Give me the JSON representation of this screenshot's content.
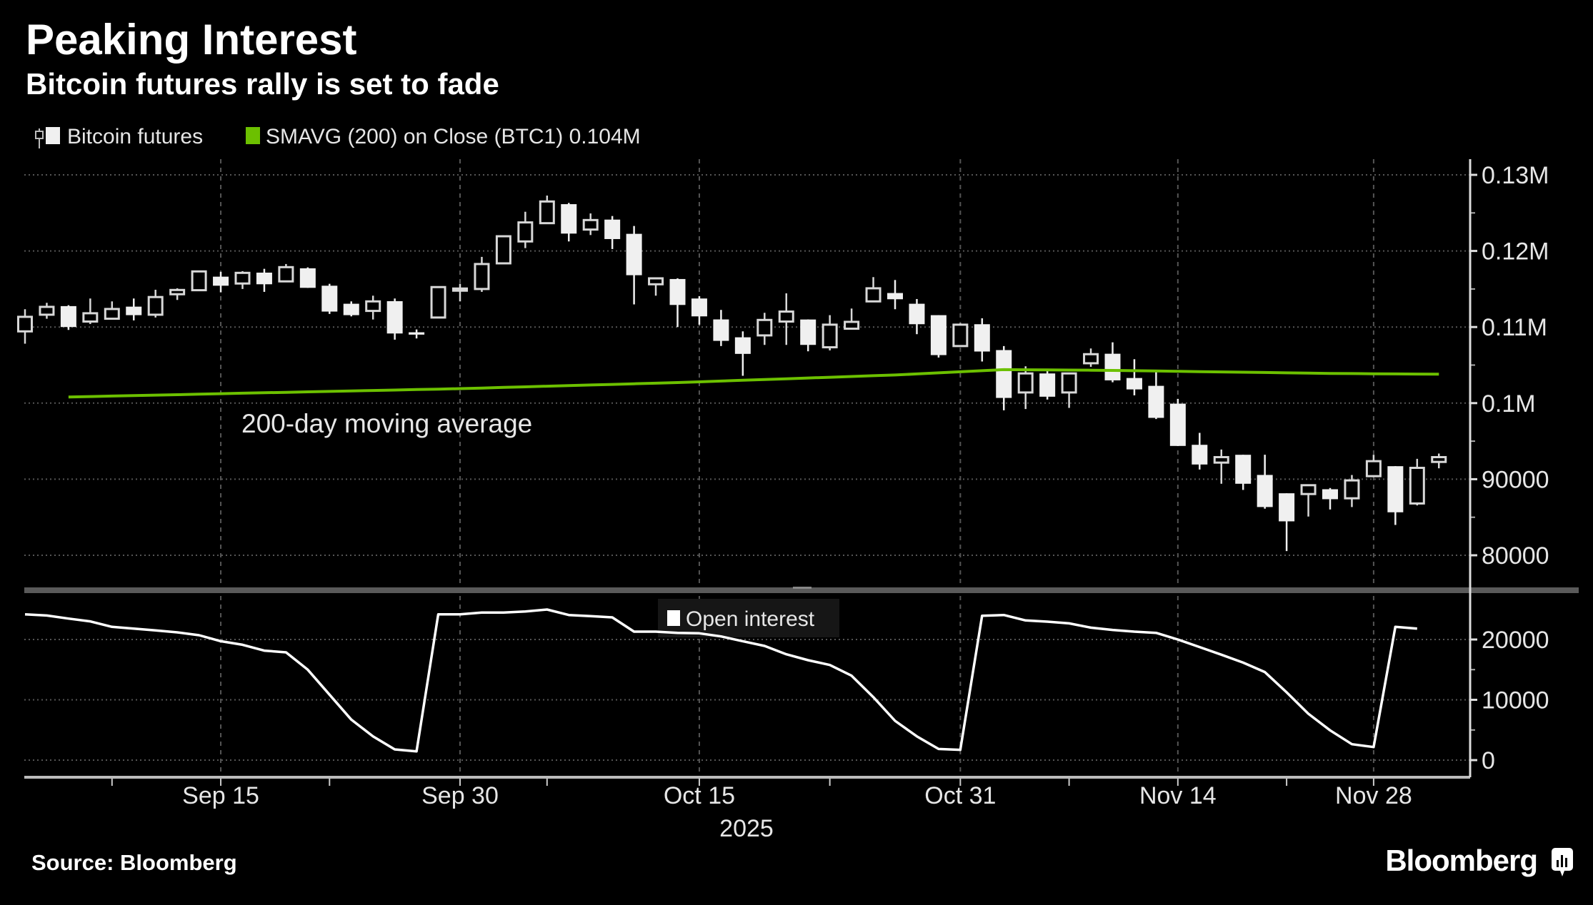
{
  "header": {
    "title": "Peaking Interest",
    "subtitle": "Bitcoin futures rally is set to fade"
  },
  "legend": {
    "candles_label": "Bitcoin futures",
    "sma_label": "SMAVG (200)  on Close (BTC1) 0.104M",
    "open_interest_label": "Open interest"
  },
  "annotation": "200-day moving average",
  "footer": {
    "source": "Source: Bloomberg",
    "brand": "Bloomberg"
  },
  "colors": {
    "background": "#000000",
    "candle": "#f0f0f0",
    "sma": "#6cc000",
    "open_interest": "#ffffff",
    "grid": "#4a4a4a"
  },
  "chart_data": [
    {
      "type": "candlestick",
      "series_name": "Bitcoin futures",
      "y_ticks": [
        {
          "value": 130000,
          "label": "0.13M"
        },
        {
          "value": 120000,
          "label": "0.12M"
        },
        {
          "value": 110000,
          "label": "0.11M"
        },
        {
          "value": 100000,
          "label": "0.1M"
        },
        {
          "value": 90000,
          "label": "90000"
        },
        {
          "value": 80000,
          "label": "80000"
        }
      ],
      "ylim": [
        77000,
        132000
      ],
      "grid": true,
      "legend_position": "top-left",
      "candles": {
        "columns": [
          "date",
          "open",
          "high",
          "low",
          "close"
        ],
        "rows": [
          [
            "2025-09-02",
            109430,
            112340,
            107810,
            111340
          ],
          [
            "2025-09-03",
            111620,
            113180,
            111090,
            112650
          ],
          [
            "2025-09-04",
            112750,
            112870,
            109620,
            110000
          ],
          [
            "2025-09-05",
            110720,
            113750,
            110400,
            111810
          ],
          [
            "2025-09-08",
            111090,
            113370,
            111090,
            112370
          ],
          [
            "2025-09-09",
            112680,
            113750,
            110870,
            111560
          ],
          [
            "2025-09-10",
            111620,
            114900,
            111250,
            113940
          ],
          [
            "2025-09-11",
            114310,
            115090,
            113560,
            114870
          ],
          [
            "2025-09-12",
            114840,
            117400,
            114800,
            117310
          ],
          [
            "2025-09-15",
            116620,
            117250,
            114560,
            115430
          ],
          [
            "2025-09-16",
            115720,
            117340,
            115000,
            117120
          ],
          [
            "2025-09-17",
            117150,
            117650,
            114620,
            115620
          ],
          [
            "2025-09-18",
            116000,
            118280,
            116000,
            117870
          ],
          [
            "2025-09-19",
            117720,
            117840,
            115150,
            115150
          ],
          [
            "2025-09-22",
            115430,
            115680,
            111720,
            112030
          ],
          [
            "2025-09-23",
            113060,
            113370,
            111400,
            111560
          ],
          [
            "2025-09-24",
            112120,
            114120,
            110990,
            113370
          ],
          [
            "2025-09-25",
            113400,
            113750,
            108340,
            109150
          ],
          [
            "2025-09-26",
            109310,
            109680,
            108500,
            109000
          ],
          [
            "2025-09-29",
            111250,
            115250,
            111250,
            115250
          ],
          [
            "2025-09-30",
            114950,
            115680,
            113370,
            115060
          ],
          [
            "2025-10-01",
            115000,
            119220,
            114620,
            118280
          ],
          [
            "2025-10-02",
            118370,
            122000,
            118370,
            121930
          ],
          [
            "2025-10-03",
            121250,
            125150,
            120370,
            123750
          ],
          [
            "2025-10-06",
            123650,
            127280,
            123650,
            126500
          ],
          [
            "2025-10-07",
            126150,
            126310,
            121250,
            122280
          ],
          [
            "2025-10-08",
            122810,
            124930,
            122090,
            124060
          ],
          [
            "2025-10-09",
            124120,
            124590,
            120250,
            121560
          ],
          [
            "2025-10-10",
            122250,
            123280,
            112970,
            116810
          ],
          [
            "2025-10-13",
            115620,
            116400,
            114120,
            116400
          ],
          [
            "2025-10-14",
            116310,
            116400,
            110000,
            112900
          ],
          [
            "2025-10-15",
            113750,
            114060,
            110310,
            111400
          ],
          [
            "2025-10-16",
            111000,
            112250,
            107500,
            108180
          ],
          [
            "2025-10-17",
            108650,
            109430,
            103590,
            106470
          ],
          [
            "2025-10-20",
            108900,
            111870,
            107650,
            110930
          ],
          [
            "2025-10-21",
            110720,
            114430,
            107650,
            112030
          ],
          [
            "2025-10-22",
            110990,
            111000,
            106810,
            107650
          ],
          [
            "2025-10-23",
            107340,
            111560,
            106930,
            110310
          ],
          [
            "2025-10-24",
            109780,
            112430,
            109780,
            110680
          ],
          [
            "2025-10-27",
            113370,
            116560,
            113370,
            115090
          ],
          [
            "2025-10-28",
            114470,
            116180,
            112340,
            113650
          ],
          [
            "2025-10-29",
            113060,
            113680,
            109060,
            110370
          ],
          [
            "2025-10-30",
            111560,
            111560,
            105990,
            106310
          ],
          [
            "2025-10-31",
            107500,
            110500,
            107500,
            110310
          ],
          [
            "2025-11-03",
            110370,
            111150,
            105470,
            106780
          ],
          [
            "2025-11-04",
            106970,
            107500,
            99060,
            100680
          ],
          [
            "2025-11-05",
            101400,
            104840,
            99220,
            103900
          ],
          [
            "2025-11-06",
            103900,
            104530,
            100470,
            100840
          ],
          [
            "2025-11-07",
            101400,
            104000,
            99370,
            103900
          ],
          [
            "2025-11-10",
            105240,
            107180,
            104770,
            106430
          ],
          [
            "2025-11-11",
            106490,
            107990,
            102740,
            102990
          ],
          [
            "2025-11-12",
            103300,
            105770,
            101020,
            101800
          ],
          [
            "2025-11-13",
            102270,
            104300,
            97900,
            98060
          ],
          [
            "2025-11-14",
            99930,
            100560,
            94370,
            94370
          ],
          [
            "2025-11-17",
            94520,
            96090,
            91270,
            91930
          ],
          [
            "2025-11-18",
            92180,
            93900,
            89400,
            92900
          ],
          [
            "2025-11-19",
            93210,
            93210,
            88590,
            89400
          ],
          [
            "2025-11-20",
            90560,
            93210,
            86120,
            86340
          ],
          [
            "2025-11-21",
            88150,
            88150,
            80550,
            84460
          ],
          [
            "2025-11-24",
            88050,
            89210,
            85090,
            89210
          ],
          [
            "2025-11-25",
            88680,
            88840,
            86020,
            87370
          ],
          [
            "2025-11-26",
            87490,
            90550,
            86340,
            89840
          ],
          [
            "2025-11-28",
            90400,
            93210,
            90400,
            92370
          ],
          [
            "2025-12-01",
            91710,
            91710,
            83990,
            85650
          ],
          [
            "2025-12-02",
            86810,
            92680,
            86560,
            91490
          ],
          [
            "2025-12-03",
            92270,
            93370,
            91430,
            92900
          ]
        ]
      },
      "sma_200": {
        "name": "SMAVG (200)  on Close (BTC1)",
        "last_value": "0.104M",
        "values": [
          null,
          null,
          100800,
          100860,
          100930,
          100990,
          101050,
          101110,
          101180,
          101240,
          101300,
          101360,
          101420,
          101480,
          101540,
          101600,
          101660,
          101720,
          101780,
          101840,
          101900,
          101980,
          102060,
          102140,
          102220,
          102300,
          102380,
          102460,
          102540,
          102620,
          102700,
          102800,
          102900,
          103000,
          103100,
          103200,
          103300,
          103400,
          103500,
          103600,
          103700,
          103840,
          103980,
          104120,
          104260,
          104400,
          104380,
          104360,
          104340,
          104320,
          104300,
          104260,
          104220,
          104180,
          104140,
          104100,
          104060,
          104020,
          103980,
          103940,
          103900,
          103880,
          103860,
          103840,
          103820,
          103800
        ]
      }
    },
    {
      "type": "line",
      "series_name": "Open interest",
      "y_ticks": [
        {
          "value": 20000,
          "label": "20000"
        },
        {
          "value": 10000,
          "label": "10000"
        },
        {
          "value": 0,
          "label": "0"
        }
      ],
      "ylim": [
        -2900,
        27000
      ],
      "grid": true,
      "legend_position": "top-center",
      "values": [
        24180,
        23980,
        23470,
        23000,
        22090,
        21810,
        21500,
        21180,
        20710,
        19720,
        19130,
        18150,
        17870,
        14990,
        10850,
        6710,
        3940,
        1780,
        1460,
        24180,
        24180,
        24460,
        24460,
        24650,
        24970,
        24060,
        23870,
        23670,
        21300,
        21300,
        21100,
        21030,
        20510,
        19720,
        18930,
        17550,
        16570,
        15780,
        14000,
        10450,
        6510,
        3940,
        1850,
        1700,
        23940,
        24060,
        23160,
        22960,
        22680,
        21970,
        21580,
        21300,
        21100,
        20000,
        18740,
        17480,
        16170,
        14600,
        11240,
        7690,
        4930,
        2640,
        2170,
        22090,
        21810,
        null
      ]
    }
  ],
  "x_axis": {
    "ticks": [
      {
        "date": "2025-09-15",
        "label": "Sep 15"
      },
      {
        "date": "2025-09-30",
        "label": "Sep 30"
      },
      {
        "date": "2025-10-15",
        "label": "Oct 15"
      },
      {
        "date": "2025-10-31",
        "label": "Oct 31"
      },
      {
        "date": "2025-11-14",
        "label": "Nov 14"
      },
      {
        "date": "2025-11-28",
        "label": "Nov 28"
      }
    ],
    "minor_tick_dates": [
      "2025-09-08",
      "2025-09-22",
      "2025-10-06",
      "2025-10-23",
      "2025-11-07",
      "2025-11-21"
    ],
    "year_label": "2025"
  }
}
